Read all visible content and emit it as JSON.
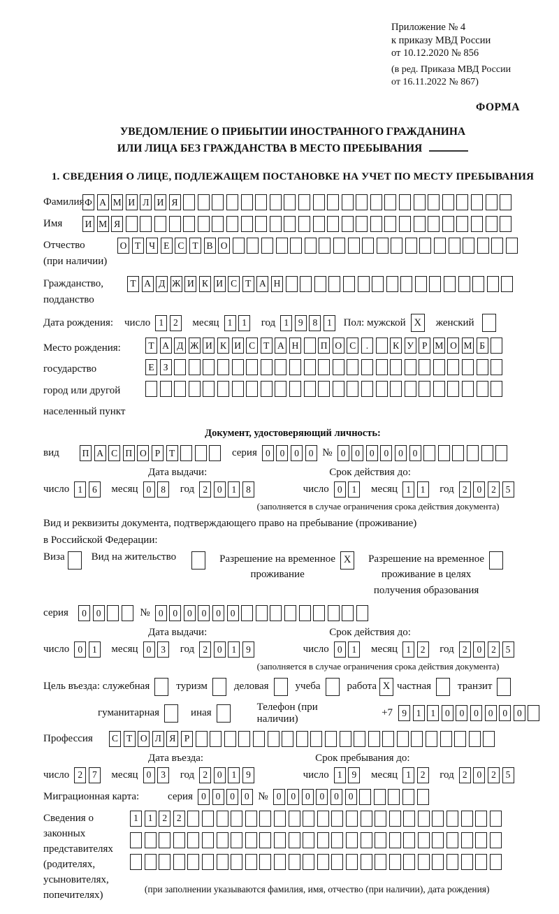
{
  "header": {
    "lines": [
      "Приложение № 4",
      "к приказу МВД России",
      "от 10.12.2020 № 856"
    ],
    "lines2": [
      "(в ред. Приказа МВД России",
      "от 16.11.2022 № 867)"
    ],
    "form_label": "ФОРМА"
  },
  "title": {
    "line1": "УВЕДОМЛЕНИЕ О ПРИБЫТИИ ИНОСТРАННОГО ГРАЖДАНИНА",
    "line2": "ИЛИ ЛИЦА БЕЗ ГРАЖДАНСТВА В МЕСТО ПРЕБЫВАНИЯ"
  },
  "section1": {
    "heading": "1. СВЕДЕНИЯ О ЛИЦЕ, ПОДЛЕЖАЩЕМ ПОСТАНОВКЕ НА УЧЕТ ПО МЕСТУ ПРЕБЫВАНИЯ"
  },
  "labels": {
    "surname": "Фамилия",
    "name": "Имя",
    "patronymic": [
      "Отчество",
      "(при наличии)"
    ],
    "citizenship": [
      "Гражданство,",
      "подданство"
    ],
    "birth_date": "Дата рождения:",
    "day": "число",
    "month": "месяц",
    "year": "год",
    "sex_male": "Пол: мужской",
    "sex_female": "женский",
    "birth_place": [
      "Место рождения:",
      "государство",
      "город или другой",
      "населенный пункт"
    ],
    "identity_doc_heading": "Документ, удостоверяющий личность:",
    "doc_kind": "вид",
    "seriya": "серия",
    "number_sign": "№",
    "issue_date": "Дата выдачи:",
    "valid_until": "Срок действия до:",
    "validity_note": "(заполняется в случае ограничения срока действия документа)",
    "resident_doc_line1": "Вид и реквизиты документа, подтверждающего право на пребывание (проживание)",
    "resident_doc_line2": "в Российской Федерации:",
    "visa": "Виза",
    "residence_permit": "Вид на жительство",
    "temp_residence": [
      "Разрешение на временное",
      "проживание"
    ],
    "temp_residence_edu": [
      "Разрешение на временное",
      "проживание в целях",
      "получения образования"
    ],
    "visit_purpose": "Цель въезда: служебная",
    "tourism": "туризм",
    "business": "деловая",
    "study": "учеба",
    "work": "работа",
    "private": "частная",
    "transit": "транзит",
    "humanitarian": "гуманитарная",
    "other": "иная",
    "phone": "Телефон (при наличии)",
    "phone_prefix": "+7",
    "profession": "Профессия",
    "entry_date": "Дата въезда:",
    "stay_until": "Срок пребывания до:",
    "migration_card": "Миграционная карта:",
    "representatives": [
      "Сведения о",
      "законных",
      "представителях",
      "(родителях,",
      "усыновителях,",
      "попечителях)"
    ],
    "representatives_note": "(при заполнении указываются фамилия, имя, отчество (при наличии), дата рождения)"
  },
  "fields": {
    "surname": {
      "value": "ФАМИЛИЯ",
      "total": 30
    },
    "name": {
      "value": "ИМЯ",
      "total": 30
    },
    "patronymic": {
      "value": "ОТЧЕСТВО",
      "total": 28
    },
    "citizenship": {
      "value": "ТАДЖИКИСТАН",
      "total": 27
    },
    "birth_day": {
      "value": "12",
      "total": 2
    },
    "birth_month": {
      "value": "11",
      "total": 2
    },
    "birth_year": {
      "value": "1981",
      "total": 4
    },
    "sex_male_mark": "X",
    "sex_female_mark": "",
    "birth_place_r1": {
      "value": "ТАДЖИКИСТАН ПОС. КУРМОМБ",
      "total": 25
    },
    "birth_place_r2": {
      "value": "ЕЗ",
      "total": 25
    },
    "birth_place_r3": {
      "value": "",
      "total": 25
    },
    "id_doc_kind": {
      "value": "ПАСПОРТ",
      "total": 10
    },
    "id_doc_seriya": {
      "value": "0000",
      "total": 4
    },
    "id_doc_number": {
      "value": "000000",
      "total": 12
    },
    "id_issue_day": {
      "value": "16",
      "total": 2
    },
    "id_issue_month": {
      "value": "08",
      "total": 2
    },
    "id_issue_year": {
      "value": "2018",
      "total": 4
    },
    "id_valid_day": {
      "value": "01",
      "total": 2
    },
    "id_valid_month": {
      "value": "11",
      "total": 2
    },
    "id_valid_year": {
      "value": "2025",
      "total": 4
    },
    "visa_mark": "",
    "residence_permit_mark": "",
    "temp_residence_mark": "X",
    "temp_residence_edu_mark": "",
    "res_doc_seriya": {
      "value": "00",
      "total": 4
    },
    "res_doc_number": {
      "value": "000000",
      "total": 15
    },
    "res_issue_day": {
      "value": "01",
      "total": 2
    },
    "res_issue_month": {
      "value": "03",
      "total": 2
    },
    "res_issue_year": {
      "value": "2019",
      "total": 4
    },
    "res_valid_day": {
      "value": "01",
      "total": 2
    },
    "res_valid_month": {
      "value": "12",
      "total": 2
    },
    "res_valid_year": {
      "value": "2025",
      "total": 4
    },
    "purpose_official_mark": "",
    "purpose_tourism_mark": "",
    "purpose_business_mark": "",
    "purpose_study_mark": "",
    "purpose_work_mark": "X",
    "purpose_private_mark": "",
    "purpose_transit_mark": "",
    "purpose_humanitarian_mark": "",
    "purpose_other_mark": "",
    "phone_digits": {
      "value": "911000000",
      "total": 10
    },
    "profession": {
      "value": "СТОЛЯР",
      "total": 27
    },
    "entry_day": {
      "value": "27",
      "total": 2
    },
    "entry_month": {
      "value": "03",
      "total": 2
    },
    "entry_year": {
      "value": "2019",
      "total": 4
    },
    "stay_day": {
      "value": "19",
      "total": 2
    },
    "stay_month": {
      "value": "12",
      "total": 2
    },
    "stay_year": {
      "value": "2025",
      "total": 4
    },
    "mig_seriya": {
      "value": "0000",
      "total": 4
    },
    "mig_number": {
      "value": "000000",
      "total": 11
    },
    "rep_r1": {
      "value": "1122",
      "total": 26
    },
    "rep_r2": {
      "value": "",
      "total": 26
    },
    "rep_r3": {
      "value": "",
      "total": 26
    }
  }
}
